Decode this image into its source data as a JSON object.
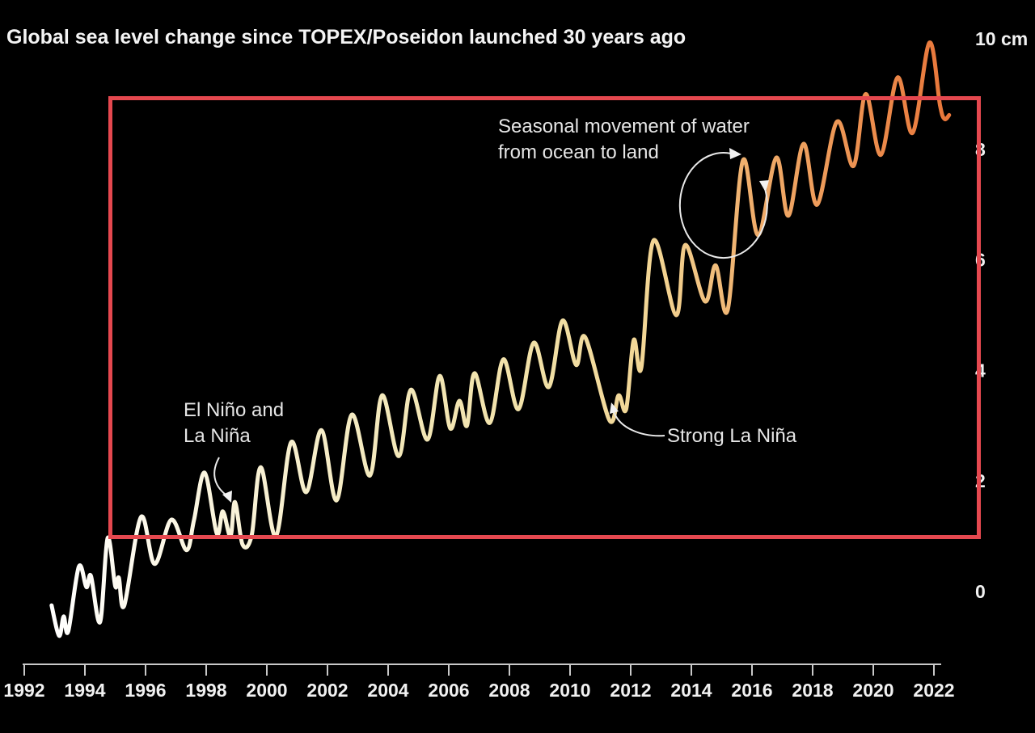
{
  "chart_data": {
    "type": "line",
    "title": "Global sea level change since TOPEX/Poseidon launched 30 years ago",
    "unit": "cm",
    "xlabel": "",
    "ylabel": "cm",
    "x_range": [
      1992,
      2022.9
    ],
    "y_range": [
      -1.2,
      10.2
    ],
    "grid": false,
    "legend": "none",
    "background_color": "#000000",
    "x_ticks": [
      1992,
      1994,
      1996,
      1998,
      2000,
      2002,
      2004,
      2006,
      2008,
      2010,
      2012,
      2014,
      2016,
      2018,
      2020,
      2022
    ],
    "y_ticks": [
      {
        "value": 0,
        "label": "0"
      },
      {
        "value": 2,
        "label": "2"
      },
      {
        "value": 4,
        "label": "4"
      },
      {
        "value": 6,
        "label": "6"
      },
      {
        "value": 8,
        "label": "8"
      },
      {
        "value": 10,
        "label": "10 cm"
      }
    ],
    "line_gradient_stops": [
      {
        "offset": 0.0,
        "color": "#ffffff"
      },
      {
        "offset": 0.18,
        "color": "#faf4dd"
      },
      {
        "offset": 0.38,
        "color": "#f3e8ba"
      },
      {
        "offset": 0.55,
        "color": "#f1e0a6"
      },
      {
        "offset": 0.68,
        "color": "#f2d493"
      },
      {
        "offset": 0.78,
        "color": "#efae6c"
      },
      {
        "offset": 0.88,
        "color": "#ed9655"
      },
      {
        "offset": 1.0,
        "color": "#e8763a"
      }
    ],
    "series": [
      {
        "points": [
          [
            1992.9,
            -0.25
          ],
          [
            1993.15,
            -0.8
          ],
          [
            1993.3,
            -0.45
          ],
          [
            1993.45,
            -0.72
          ],
          [
            1993.8,
            0.45
          ],
          [
            1994.05,
            0.08
          ],
          [
            1994.2,
            0.28
          ],
          [
            1994.5,
            -0.55
          ],
          [
            1994.75,
            0.97
          ],
          [
            1995.0,
            0.1
          ],
          [
            1995.12,
            0.25
          ],
          [
            1995.3,
            -0.25
          ],
          [
            1995.85,
            1.35
          ],
          [
            1996.3,
            0.5
          ],
          [
            1996.85,
            1.3
          ],
          [
            1997.35,
            0.75
          ],
          [
            1997.6,
            1.3
          ],
          [
            1997.95,
            2.15
          ],
          [
            1998.35,
            1.05
          ],
          [
            1998.55,
            1.45
          ],
          [
            1998.8,
            1.0
          ],
          [
            1998.95,
            1.62
          ],
          [
            1999.2,
            0.85
          ],
          [
            1999.5,
            1.02
          ],
          [
            1999.8,
            2.25
          ],
          [
            2000.3,
            1.0
          ],
          [
            2000.8,
            2.7
          ],
          [
            2001.3,
            1.8
          ],
          [
            2001.8,
            2.92
          ],
          [
            2002.3,
            1.65
          ],
          [
            2002.8,
            3.2
          ],
          [
            2003.4,
            2.1
          ],
          [
            2003.8,
            3.55
          ],
          [
            2004.35,
            2.45
          ],
          [
            2004.75,
            3.65
          ],
          [
            2005.3,
            2.75
          ],
          [
            2005.7,
            3.9
          ],
          [
            2006.05,
            2.95
          ],
          [
            2006.35,
            3.45
          ],
          [
            2006.6,
            3.0
          ],
          [
            2006.85,
            3.95
          ],
          [
            2007.35,
            3.05
          ],
          [
            2007.8,
            4.2
          ],
          [
            2008.3,
            3.3
          ],
          [
            2008.8,
            4.5
          ],
          [
            2009.3,
            3.7
          ],
          [
            2009.75,
            4.9
          ],
          [
            2010.2,
            4.1
          ],
          [
            2010.5,
            4.6
          ],
          [
            2011.3,
            3.1
          ],
          [
            2011.6,
            3.55
          ],
          [
            2011.85,
            3.3
          ],
          [
            2012.1,
            4.55
          ],
          [
            2012.35,
            4.05
          ],
          [
            2012.75,
            6.35
          ],
          [
            2013.5,
            5.0
          ],
          [
            2013.8,
            6.27
          ],
          [
            2014.45,
            5.25
          ],
          [
            2014.8,
            5.9
          ],
          [
            2015.2,
            5.1
          ],
          [
            2015.7,
            7.8
          ],
          [
            2016.2,
            6.45
          ],
          [
            2016.8,
            7.85
          ],
          [
            2017.2,
            6.8
          ],
          [
            2017.7,
            8.1
          ],
          [
            2018.15,
            7.0
          ],
          [
            2018.8,
            8.5
          ],
          [
            2019.35,
            7.7
          ],
          [
            2019.75,
            9.0
          ],
          [
            2020.25,
            7.9
          ],
          [
            2020.8,
            9.3
          ],
          [
            2021.3,
            8.3
          ],
          [
            2021.85,
            9.93
          ],
          [
            2022.2,
            8.8
          ],
          [
            2022.35,
            8.55
          ],
          [
            2022.5,
            8.62
          ]
        ]
      }
    ],
    "annotations": [
      {
        "id": "seasonal-cycle",
        "lines": [
          "Seasonal movement of water",
          "from ocean to land"
        ]
      },
      {
        "id": "el-nino-la-nina",
        "lines": [
          "El Niño and",
          "La Niña"
        ]
      },
      {
        "id": "strong-la-nina",
        "lines": [
          "Strong La Niña"
        ]
      }
    ]
  },
  "overlay": {
    "type": "highlight-rectangle",
    "color": "#e5484f"
  }
}
